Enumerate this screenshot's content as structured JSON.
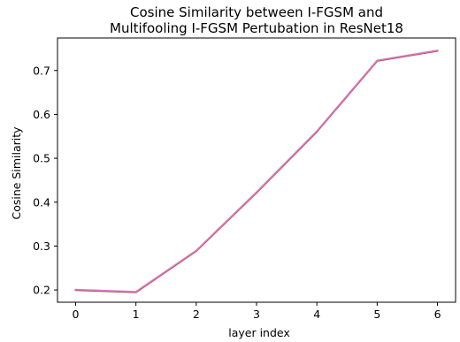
{
  "chart_data": {
    "type": "line",
    "title_line1": "Cosine Similarity between I-FGSM and",
    "title_line2": "Multifooling I-FGSM Pertubation in ResNet18",
    "xlabel": "layer index",
    "ylabel": "Cosine Similarity",
    "x": [
      0,
      1,
      2,
      3,
      4,
      5,
      6
    ],
    "series": [
      {
        "values": [
          0.201,
          0.196,
          0.29,
          0.423,
          0.562,
          0.723,
          0.746
        ],
        "color": "#e377c2"
      },
      {
        "values": [
          0.2,
          0.195,
          0.289,
          0.422,
          0.561,
          0.722,
          0.745
        ],
        "color": "#8c564b"
      }
    ],
    "xticks": [
      "0",
      "1",
      "2",
      "3",
      "4",
      "5",
      "6"
    ],
    "yticks": [
      "0.2",
      "0.3",
      "0.4",
      "0.5",
      "0.6",
      "0.7"
    ],
    "ytick_values": [
      0.2,
      0.3,
      0.4,
      0.5,
      0.6,
      0.7
    ],
    "xlim": [
      -0.3,
      6.3
    ],
    "ylim": [
      0.172,
      0.774
    ],
    "grid": false,
    "legend": "none"
  }
}
